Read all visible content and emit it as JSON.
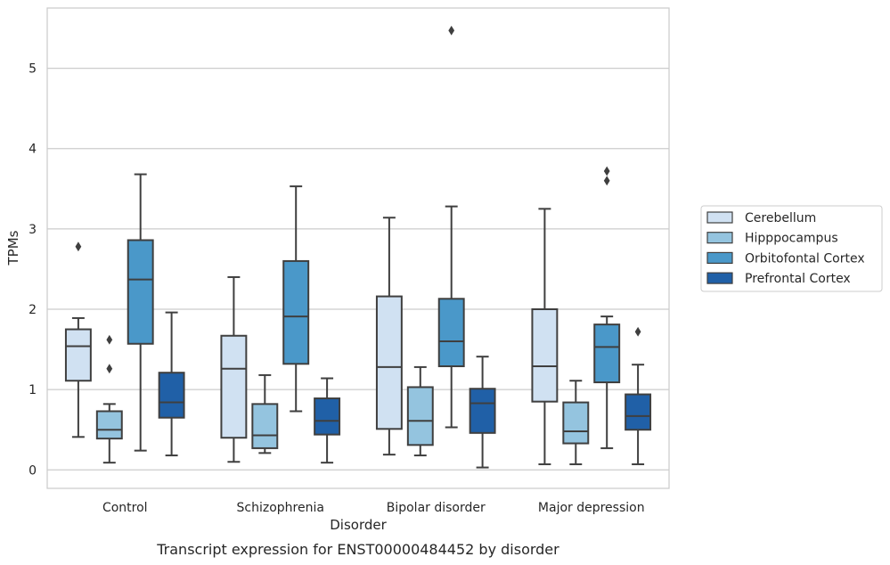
{
  "chart_data": {
    "type": "box",
    "title": "",
    "caption": "Transcript expression for ENST00000484452 by disorder",
    "xlabel": "Disorder",
    "ylabel": "TPMs",
    "ylim": [
      -0.23,
      5.75
    ],
    "yticks": [
      0,
      1,
      2,
      3,
      4,
      5
    ],
    "grid": "horizontal",
    "legend_position": "right",
    "categories": [
      "Control",
      "Schizophrenia",
      "Bipolar disorder",
      "Major depression"
    ],
    "series": [
      {
        "name": "Cerebellum",
        "color": "#d0e1f2",
        "boxes": [
          {
            "whislo": 0.41,
            "q1": 1.11,
            "med": 1.54,
            "q3": 1.75,
            "whishi": 1.89,
            "fliers": [
              2.78
            ]
          },
          {
            "whislo": 0.1,
            "q1": 0.4,
            "med": 1.26,
            "q3": 1.67,
            "whishi": 2.4,
            "fliers": []
          },
          {
            "whislo": 0.19,
            "q1": 0.51,
            "med": 1.28,
            "q3": 2.16,
            "whishi": 3.14,
            "fliers": []
          },
          {
            "whislo": 0.07,
            "q1": 0.85,
            "med": 1.29,
            "q3": 2.0,
            "whishi": 3.25,
            "fliers": []
          }
        ]
      },
      {
        "name": "Hipppocampus",
        "color": "#94c4df",
        "boxes": [
          {
            "whislo": 0.09,
            "q1": 0.39,
            "med": 0.5,
            "q3": 0.73,
            "whishi": 0.82,
            "fliers": [
              1.26,
              1.62
            ]
          },
          {
            "whislo": 0.21,
            "q1": 0.27,
            "med": 0.43,
            "q3": 0.82,
            "whishi": 1.18,
            "fliers": []
          },
          {
            "whislo": 0.18,
            "q1": 0.31,
            "med": 0.61,
            "q3": 1.03,
            "whishi": 1.28,
            "fliers": []
          },
          {
            "whislo": 0.07,
            "q1": 0.33,
            "med": 0.48,
            "q3": 0.84,
            "whishi": 1.11,
            "fliers": []
          }
        ]
      },
      {
        "name": "Orbitofontal Cortex",
        "color": "#4a98c9",
        "boxes": [
          {
            "whislo": 0.24,
            "q1": 1.57,
            "med": 2.37,
            "q3": 2.86,
            "whishi": 3.68,
            "fliers": []
          },
          {
            "whislo": 0.73,
            "q1": 1.32,
            "med": 1.91,
            "q3": 2.6,
            "whishi": 3.53,
            "fliers": []
          },
          {
            "whislo": 0.53,
            "q1": 1.29,
            "med": 1.6,
            "q3": 2.13,
            "whishi": 3.28,
            "fliers": [
              5.47
            ]
          },
          {
            "whislo": 0.27,
            "q1": 1.09,
            "med": 1.53,
            "q3": 1.81,
            "whishi": 1.91,
            "fliers": [
              3.6,
              3.72
            ]
          }
        ]
      },
      {
        "name": "Prefrontal Cortex",
        "color": "#2060a7",
        "boxes": [
          {
            "whislo": 0.18,
            "q1": 0.65,
            "med": 0.84,
            "q3": 1.21,
            "whishi": 1.96,
            "fliers": []
          },
          {
            "whislo": 0.09,
            "q1": 0.44,
            "med": 0.61,
            "q3": 0.89,
            "whishi": 1.14,
            "fliers": []
          },
          {
            "whislo": 0.03,
            "q1": 0.46,
            "med": 0.83,
            "q3": 1.01,
            "whishi": 1.41,
            "fliers": []
          },
          {
            "whislo": 0.07,
            "q1": 0.5,
            "med": 0.67,
            "q3": 0.94,
            "whishi": 1.31,
            "fliers": [
              1.72
            ]
          }
        ]
      }
    ]
  }
}
